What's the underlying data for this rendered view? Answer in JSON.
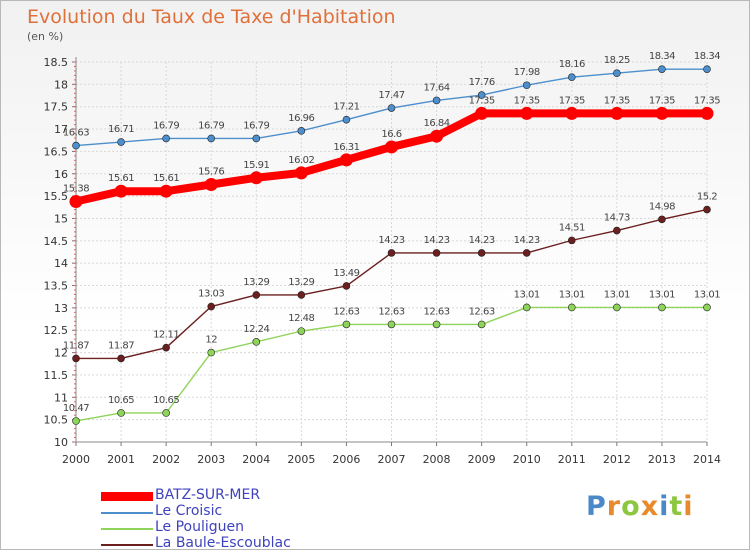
{
  "chart_data": {
    "type": "line",
    "title": "Evolution du Taux de Taxe d'Habitation",
    "unit_label": "(en %)",
    "x": [
      2000,
      2001,
      2002,
      2003,
      2004,
      2005,
      2006,
      2007,
      2008,
      2009,
      2010,
      2011,
      2012,
      2013,
      2014
    ],
    "ylim": [
      10,
      18.5
    ],
    "yticks": [
      "10",
      "10.5",
      "11",
      "11.5",
      "12",
      "12.5",
      "13",
      "13.5",
      "14",
      "14.5",
      "15",
      "15.5",
      "16",
      "16.5",
      "17",
      "17.5",
      "18",
      "18.5"
    ],
    "grid": true,
    "legend_position": "bottom-left",
    "series": [
      {
        "name": "BATZ-SUR-MER",
        "color": "#ff0000",
        "emphasis": true,
        "values": [
          15.38,
          15.61,
          15.61,
          15.76,
          15.91,
          16.02,
          16.31,
          16.6,
          16.84,
          17.35,
          17.35,
          17.35,
          17.35,
          17.35,
          17.35
        ]
      },
      {
        "name": "Le Croisic",
        "color": "#4c8fcc",
        "values": [
          16.63,
          16.71,
          16.79,
          16.79,
          16.79,
          16.96,
          17.21,
          17.47,
          17.64,
          17.76,
          17.98,
          18.16,
          18.25,
          18.34,
          18.34
        ]
      },
      {
        "name": "Le Pouliguen",
        "color": "#8ed45a",
        "values": [
          10.47,
          10.65,
          10.65,
          12,
          12.24,
          12.48,
          12.63,
          12.63,
          12.63,
          12.63,
          13.01,
          13.01,
          13.01,
          13.01,
          13.01
        ]
      },
      {
        "name": "La Baule-Escoublac",
        "color": "#6b1f1f",
        "values": [
          11.87,
          11.87,
          12.11,
          13.03,
          13.29,
          13.29,
          13.49,
          14.23,
          14.23,
          14.23,
          14.23,
          14.51,
          14.73,
          14.98,
          15.2
        ]
      }
    ]
  },
  "logo": {
    "letters": [
      "P",
      "r",
      "o",
      "x",
      "i",
      "t",
      "i"
    ],
    "colors": [
      "#4a88c8",
      "#e88a2b",
      "#8dc63f",
      "#e88a2b",
      "#4a88c8",
      "#8dc63f",
      "#e88a2b"
    ]
  }
}
